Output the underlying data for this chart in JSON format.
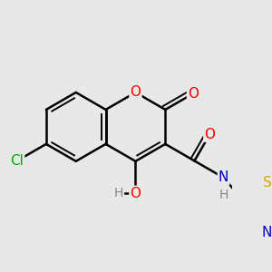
{
  "background_color": "#e8e8e8",
  "bond_color": "#000000",
  "atom_colors": {
    "O": "#ff0000",
    "N": "#0000cc",
    "Cl": "#00aa00",
    "S": "#ccaa00",
    "H": "#888888",
    "C": "#000000"
  },
  "bond_width": 1.8,
  "font_size": 11,
  "figsize": [
    3.0,
    3.0
  ],
  "dpi": 100
}
